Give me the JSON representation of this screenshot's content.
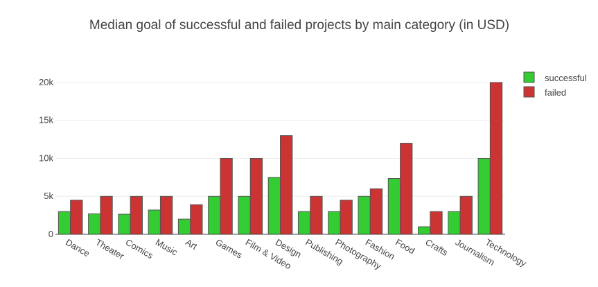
{
  "chart_data": {
    "type": "bar",
    "title": "Median goal of successful and failed projects by main category (in USD)",
    "categories": [
      "Dance",
      "Theater",
      "Comics",
      "Music",
      "Art",
      "Games",
      "Film & Video",
      "Design",
      "Publishing",
      "Photography",
      "Fashion",
      "Food",
      "Crafts",
      "Journalism",
      "Technology"
    ],
    "series": [
      {
        "name": "successful",
        "color": "#33cc33",
        "values": [
          3000,
          2700,
          2650,
          3200,
          2000,
          5000,
          5000,
          7500,
          3000,
          3000,
          5000,
          7350,
          1000,
          3000,
          10000
        ]
      },
      {
        "name": "failed",
        "color": "#cc3333",
        "values": [
          4500,
          5000,
          5000,
          5000,
          3900,
          10000,
          10000,
          13000,
          5000,
          4500,
          6000,
          12000,
          3000,
          5000,
          20000
        ]
      }
    ],
    "ylim": [
      0,
      21000
    ],
    "yticks": [
      0,
      5000,
      10000,
      15000,
      20000
    ],
    "ytick_labels": [
      "0",
      "5k",
      "10k",
      "15k",
      "20k"
    ],
    "grid": true,
    "legend_position": "top-right"
  }
}
